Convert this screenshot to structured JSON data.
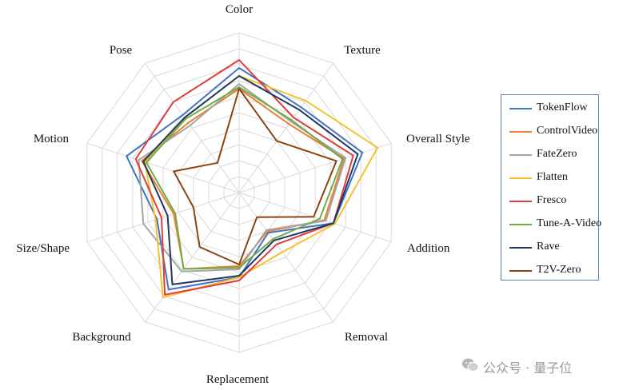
{
  "chart_data": {
    "type": "radar",
    "axes": [
      "Color",
      "Texture",
      "Overall Style",
      "Addition",
      "Removal",
      "Replacement",
      "Background",
      "Size/Shape",
      "Motion",
      "Pose"
    ],
    "rmax": 10,
    "rings": 10,
    "grid": true,
    "legend_position": "right",
    "series": [
      {
        "name": "TokenFlow",
        "color": "#4472C4",
        "values": [
          7.8,
          6.6,
          8.1,
          6.2,
          3.1,
          5.3,
          7.5,
          5.4,
          7.4,
          6.0
        ]
      },
      {
        "name": "ControlVideo",
        "color": "#ED7D31",
        "values": [
          6.5,
          5.3,
          6.9,
          5.6,
          3.0,
          4.6,
          5.9,
          4.3,
          6.4,
          5.4
        ]
      },
      {
        "name": "FateZero",
        "color": "#A5A5A5",
        "values": [
          6.8,
          5.5,
          7.0,
          5.7,
          2.9,
          4.8,
          6.1,
          6.3,
          6.6,
          5.2
        ]
      },
      {
        "name": "Flatten",
        "color": "#F5C22E",
        "values": [
          7.3,
          7.1,
          9.1,
          6.3,
          4.6,
          5.3,
          8.1,
          5.5,
          6.2,
          5.8
        ]
      },
      {
        "name": "Fresco",
        "color": "#E03C3C",
        "values": [
          8.3,
          5.8,
          7.5,
          6.2,
          4.0,
          5.5,
          7.9,
          5.1,
          6.8,
          7.0
        ]
      },
      {
        "name": "Tune-A-Video",
        "color": "#70AD47",
        "values": [
          6.6,
          5.6,
          6.8,
          5.3,
          3.6,
          4.7,
          5.9,
          4.2,
          6.1,
          5.7
        ]
      },
      {
        "name": "Rave",
        "color": "#203864",
        "values": [
          7.3,
          6.4,
          7.8,
          6.2,
          3.7,
          5.2,
          7.1,
          4.7,
          6.3,
          5.8
        ]
      },
      {
        "name": "T2V-Zero",
        "color": "#8B4513",
        "values": [
          6.5,
          4.0,
          6.4,
          4.9,
          1.9,
          4.5,
          4.2,
          3.0,
          4.3,
          2.3
        ]
      }
    ]
  },
  "watermark": {
    "text": "公众号 · 量子位"
  }
}
